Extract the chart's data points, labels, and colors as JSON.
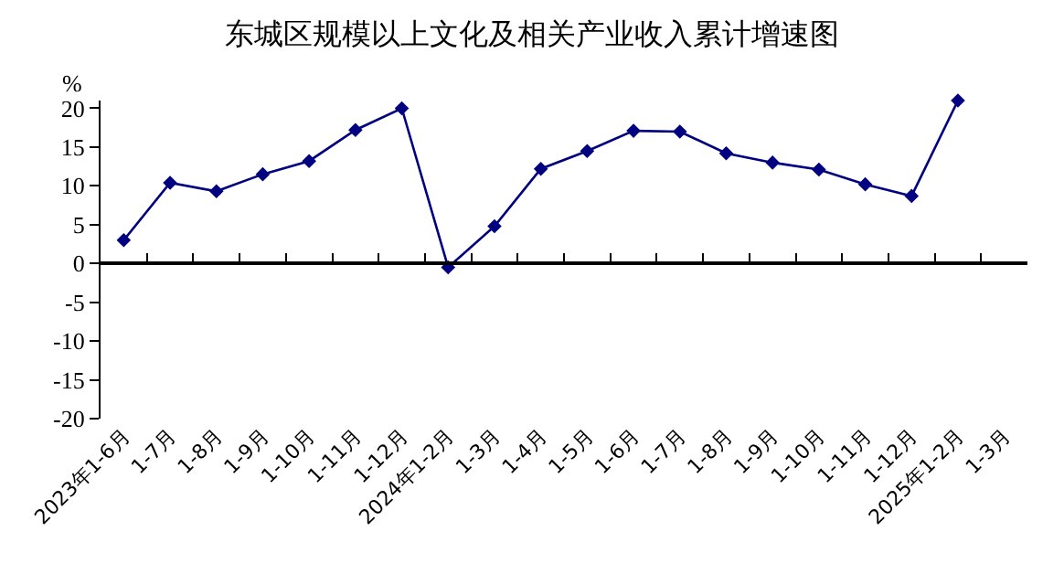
{
  "chart_data": {
    "type": "line",
    "title": "东城区规模以上文化及相关产业收入累计增速图",
    "ylabel": "%",
    "categories": [
      "2023年1-6月",
      "1-7月",
      "1-8月",
      "1-9月",
      "1-10月",
      "1-11月",
      "1-12月",
      "2024年1-2月",
      "1-3月",
      "1-4月",
      "1-5月",
      "1-6月",
      "1-7月",
      "1-8月",
      "1-9月",
      "1-10月",
      "1-11月",
      "1-12月",
      "2025年1-2月",
      "1-3月"
    ],
    "series": [
      {
        "color": "#000080",
        "values": [
          3.0,
          10.4,
          9.3,
          11.5,
          13.2,
          17.2,
          20.0,
          -0.5,
          4.8,
          12.2,
          14.5,
          17.1,
          17.0,
          14.2,
          13.0,
          12.1,
          10.2,
          8.7,
          21,
          null
        ]
      }
    ],
    "ylim": [
      -20,
      21
    ],
    "yticks": [
      -20,
      -15,
      -10,
      -5,
      0,
      5,
      10,
      15,
      20
    ],
    "legend": false,
    "marker": "diamond",
    "line_style": "solid"
  }
}
